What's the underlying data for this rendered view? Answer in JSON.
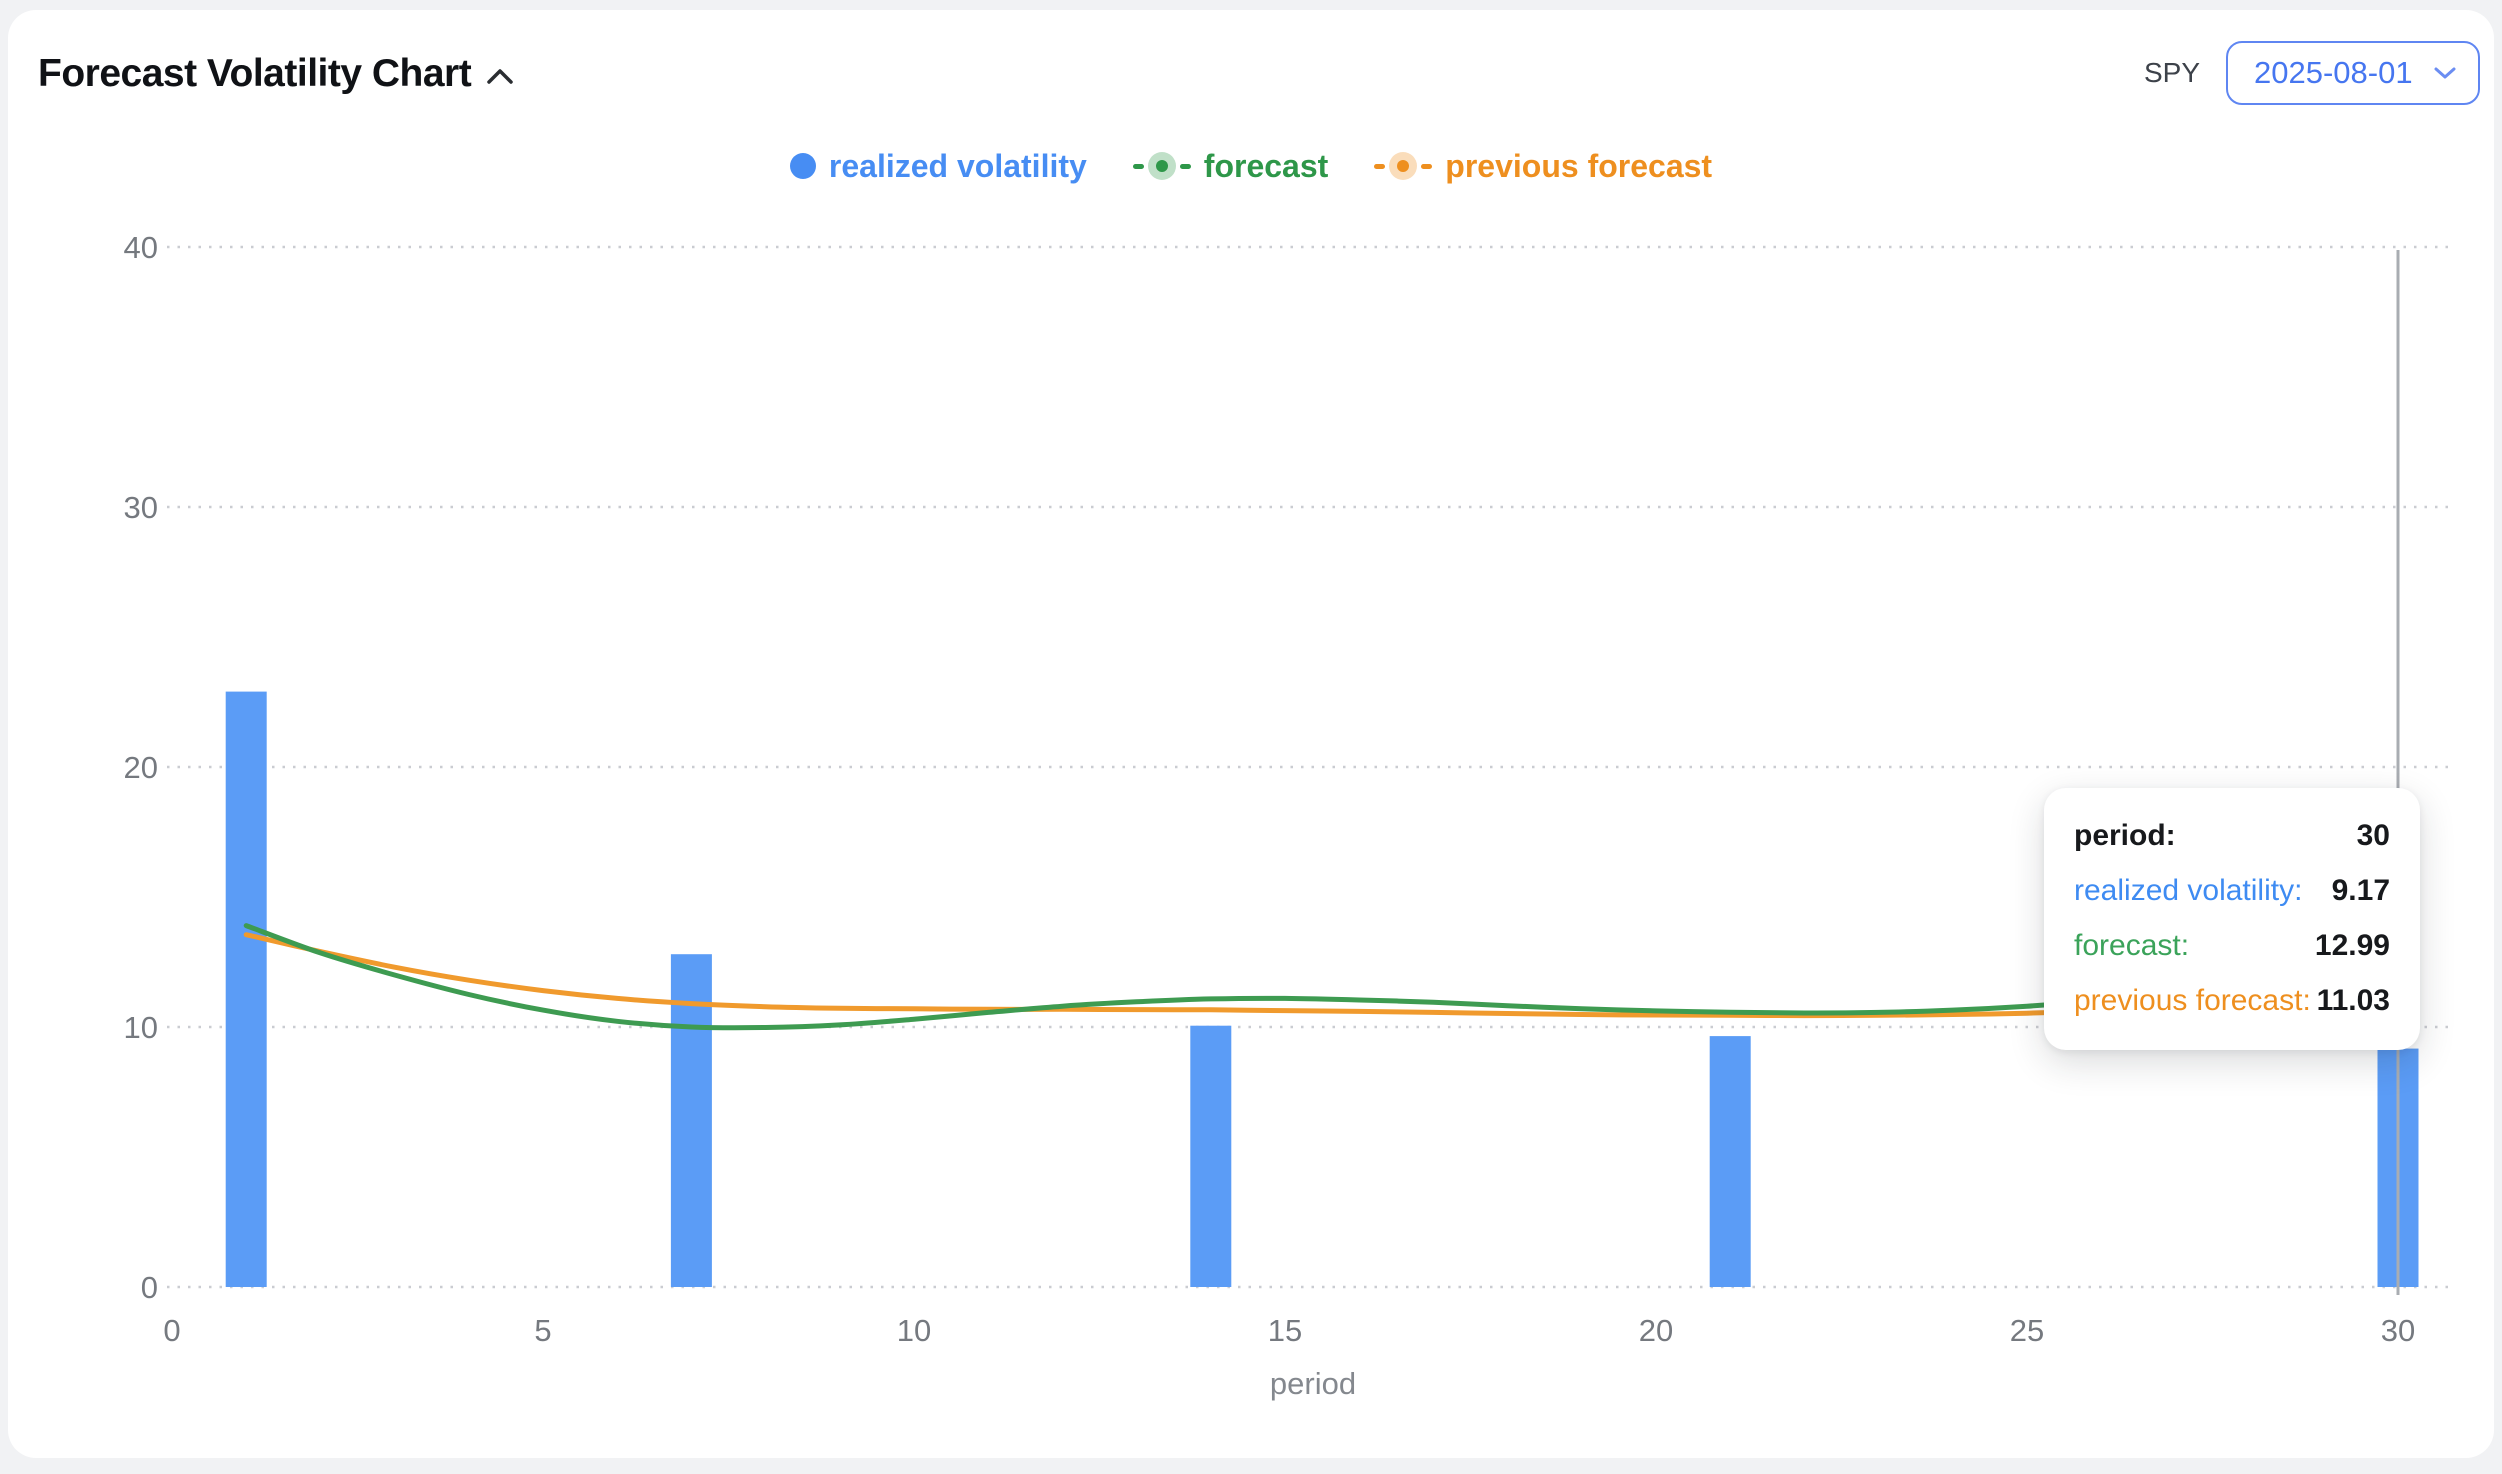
{
  "header": {
    "title": "Forecast Volatility Chart",
    "collapse_icon": "chevron-up",
    "symbol": "SPY",
    "date_selector": {
      "value": "2025-08-01"
    }
  },
  "legend": {
    "items": [
      {
        "label": "realized volatility",
        "color": "#478DF3",
        "marker": "circle"
      },
      {
        "label": "forecast",
        "color": "#2E9749",
        "marker": "line-dot"
      },
      {
        "label": "previous forecast",
        "color": "#EE8F1F",
        "marker": "line-dot"
      }
    ]
  },
  "chart_data": {
    "type": "mixed",
    "xlabel": "period",
    "x_ticks": [
      0,
      5,
      10,
      15,
      20,
      25,
      30
    ],
    "y_ticks": [
      0,
      10,
      20,
      30,
      40
    ],
    "xlim": [
      0,
      30.8
    ],
    "ylim": [
      0,
      40
    ],
    "grid": "horizontal-dotted",
    "legend_position": "top-center",
    "hover_period": 30,
    "series": [
      {
        "name": "realized volatility",
        "type": "bar",
        "color": "#5B9CF6",
        "points": [
          [
            1,
            22.9
          ],
          [
            7,
            12.8
          ],
          [
            14,
            10.05
          ],
          [
            21,
            9.65
          ],
          [
            30,
            9.17
          ]
        ]
      },
      {
        "name": "forecast",
        "type": "line",
        "color": "#3E9B51",
        "end_marker": true,
        "points": [
          [
            1,
            13.9
          ],
          [
            2,
            12.85
          ],
          [
            3,
            12.0
          ],
          [
            4,
            11.25
          ],
          [
            5,
            10.65
          ],
          [
            6,
            10.22
          ],
          [
            7,
            10.0
          ],
          [
            8,
            9.98
          ],
          [
            9,
            10.08
          ],
          [
            10,
            10.3
          ],
          [
            11,
            10.56
          ],
          [
            12,
            10.8
          ],
          [
            13,
            10.97
          ],
          [
            14,
            11.08
          ],
          [
            15,
            11.1
          ],
          [
            16,
            11.04
          ],
          [
            17,
            10.95
          ],
          [
            18,
            10.82
          ],
          [
            19,
            10.7
          ],
          [
            20,
            10.62
          ],
          [
            21,
            10.57
          ],
          [
            22,
            10.54
          ],
          [
            23,
            10.56
          ],
          [
            24,
            10.65
          ],
          [
            25,
            10.8
          ],
          [
            26,
            11.02
          ],
          [
            27,
            11.35
          ],
          [
            28,
            11.85
          ],
          [
            29,
            12.42
          ],
          [
            30,
            12.99
          ]
        ]
      },
      {
        "name": "previous forecast",
        "type": "line",
        "color": "#F09A2D",
        "end_marker": true,
        "points": [
          [
            1,
            13.55
          ],
          [
            2,
            12.9
          ],
          [
            3,
            12.3
          ],
          [
            4,
            11.8
          ],
          [
            5,
            11.4
          ],
          [
            6,
            11.1
          ],
          [
            7,
            10.9
          ],
          [
            8,
            10.78
          ],
          [
            9,
            10.72
          ],
          [
            10,
            10.7
          ],
          [
            11,
            10.68
          ],
          [
            12,
            10.68
          ],
          [
            13,
            10.67
          ],
          [
            14,
            10.66
          ],
          [
            15,
            10.63
          ],
          [
            16,
            10.6
          ],
          [
            17,
            10.56
          ],
          [
            18,
            10.52
          ],
          [
            19,
            10.48
          ],
          [
            20,
            10.46
          ],
          [
            21,
            10.45
          ],
          [
            22,
            10.44
          ],
          [
            23,
            10.45
          ],
          [
            24,
            10.48
          ],
          [
            25,
            10.53
          ],
          [
            26,
            10.62
          ],
          [
            27,
            10.72
          ],
          [
            28,
            10.83
          ],
          [
            29,
            10.93
          ],
          [
            30,
            11.03
          ]
        ]
      }
    ]
  },
  "tooltip": {
    "rows": [
      {
        "label": "period:",
        "value": "30",
        "color": "#17191C"
      },
      {
        "label": "realized volatility:",
        "value": "9.17",
        "color": "#3E8BF2"
      },
      {
        "label": "forecast:",
        "value": "12.99",
        "color": "#3BA35A"
      },
      {
        "label": "previous forecast:",
        "value": "11.03",
        "color": "#EE8F1F"
      }
    ]
  }
}
